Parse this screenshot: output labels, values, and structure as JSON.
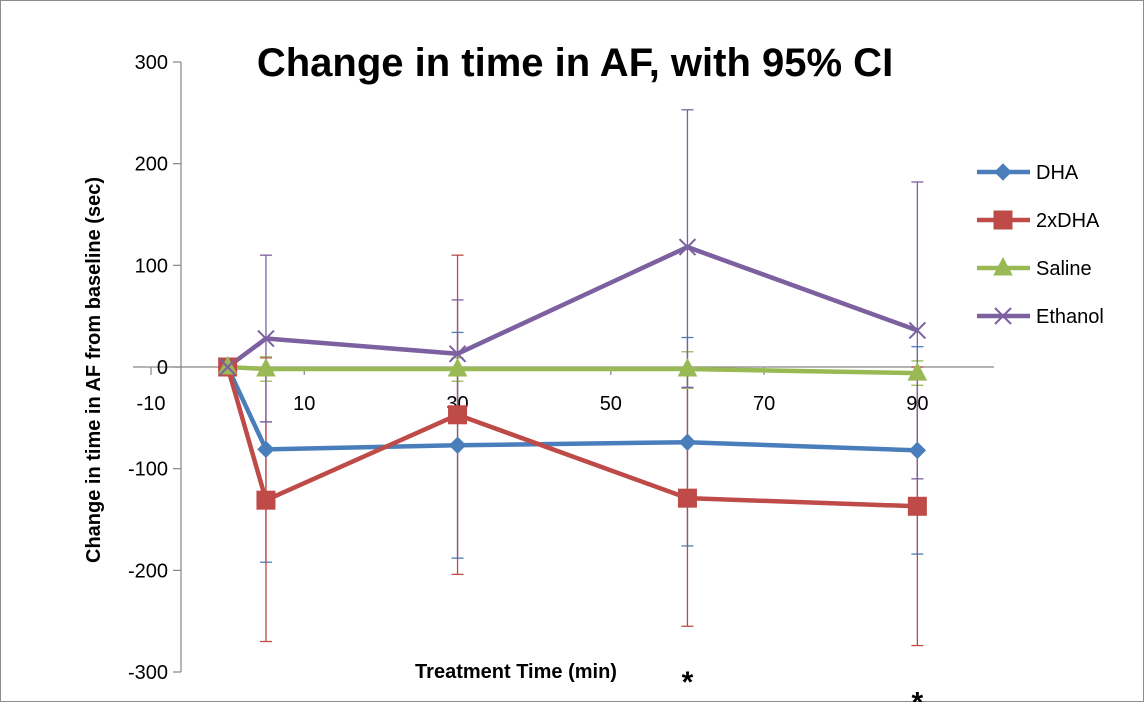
{
  "chart_data": {
    "type": "line",
    "title": "Change in time in AF, with 95% CI",
    "xlabel": "Treatment Time (min)",
    "ylabel": "Change in time in AF from baseline (sec)",
    "xlim": [
      -10,
      100
    ],
    "ylim": [
      -300,
      300
    ],
    "x_ticks": [
      "-10",
      "10",
      "30",
      "50",
      "70",
      "90"
    ],
    "y_ticks": [
      "300",
      "200",
      "100",
      "0",
      "-100",
      "-200",
      "-300"
    ],
    "x_tick_values": [
      -10,
      10,
      30,
      50,
      70,
      90
    ],
    "y_tick_values": [
      300,
      200,
      100,
      0,
      -100,
      -200,
      -300
    ],
    "grid": false,
    "legend_position": "right",
    "series": [
      {
        "name": "DHA",
        "color": "#4a7ebb",
        "marker": "diamond",
        "x": [
          0,
          5,
          30,
          60,
          90
        ],
        "y": [
          0,
          -81,
          -77,
          -74,
          -82
        ],
        "ci_low": [
          null,
          -192,
          -188,
          -176,
          -184
        ],
        "ci_high": [
          null,
          -54,
          34,
          29,
          20
        ]
      },
      {
        "name": "2xDHA",
        "color": "#be4b48",
        "marker": "square",
        "x": [
          0,
          5,
          30,
          60,
          90
        ],
        "y": [
          0,
          -131,
          -47,
          -129,
          -137
        ],
        "ci_low": [
          null,
          -270,
          -204,
          -255,
          -274
        ],
        "ci_high": [
          null,
          9,
          110,
          -3,
          0
        ]
      },
      {
        "name": "Saline",
        "color": "#98b954",
        "marker": "triangle",
        "x": [
          0,
          5,
          30,
          60,
          90
        ],
        "y": [
          0,
          -2,
          -2,
          -2,
          -6
        ],
        "ci_low": [
          null,
          -14,
          -14,
          -21,
          -18
        ],
        "ci_high": [
          null,
          10,
          9,
          15,
          6
        ]
      },
      {
        "name": "Ethanol",
        "color": "#7d60a0",
        "marker": "x",
        "x": [
          0,
          5,
          30,
          60,
          90
        ],
        "y": [
          0,
          28,
          13,
          118,
          36
        ],
        "ci_low": [
          null,
          -54,
          -40,
          -20,
          -110
        ],
        "ci_high": [
          null,
          110,
          66,
          253,
          182
        ]
      }
    ],
    "annotations": [
      {
        "text": "*",
        "x": 60,
        "y": -310
      },
      {
        "text": "*",
        "x": 90,
        "y": -330
      }
    ]
  }
}
